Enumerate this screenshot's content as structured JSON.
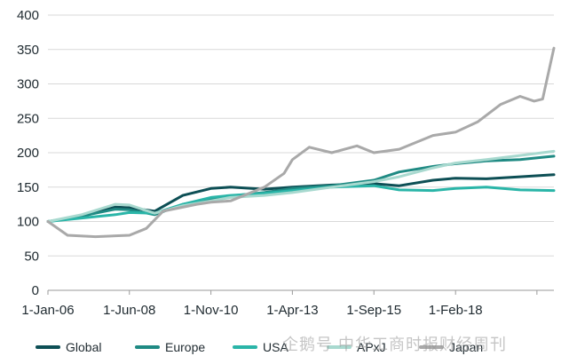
{
  "chart_data": {
    "type": "line",
    "title": "",
    "xlabel": "",
    "ylabel": "",
    "ylim": [
      0,
      400
    ],
    "y_ticks": [
      "0",
      "50",
      "100",
      "150",
      "200",
      "250",
      "300",
      "350",
      "400"
    ],
    "x_ticks": [
      "1-Jan-06",
      "1-Jun-08",
      "1-Nov-10",
      "1-Apr-13",
      "1-Sep-15",
      "1-Feb-18"
    ],
    "xlim": [
      "2006-01-01",
      "2021-01-01"
    ],
    "grid": "horizontal",
    "legend_position": "bottom",
    "series": [
      {
        "name": "Global",
        "color": "#0d4f55",
        "points": [
          [
            "2006-01",
            100
          ],
          [
            "2007-01",
            107
          ],
          [
            "2008-01",
            121
          ],
          [
            "2008-06",
            120
          ],
          [
            "2009-03",
            115
          ],
          [
            "2010-01",
            138
          ],
          [
            "2010-11",
            148
          ],
          [
            "2011-06",
            150
          ],
          [
            "2012-06",
            147
          ],
          [
            "2013-04",
            150
          ],
          [
            "2014-06",
            153
          ],
          [
            "2015-09",
            155
          ],
          [
            "2016-06",
            152
          ],
          [
            "2017-06",
            160
          ],
          [
            "2018-02",
            163
          ],
          [
            "2019-01",
            162
          ],
          [
            "2020-01",
            165
          ],
          [
            "2021-01",
            168
          ]
        ]
      },
      {
        "name": "Europe",
        "color": "#1f8a83",
        "points": [
          [
            "2006-01",
            100
          ],
          [
            "2007-01",
            108
          ],
          [
            "2008-01",
            118
          ],
          [
            "2008-06",
            117
          ],
          [
            "2009-03",
            110
          ],
          [
            "2010-01",
            125
          ],
          [
            "2010-11",
            132
          ],
          [
            "2011-06",
            137
          ],
          [
            "2012-06",
            142
          ],
          [
            "2013-04",
            148
          ],
          [
            "2014-06",
            152
          ],
          [
            "2015-09",
            160
          ],
          [
            "2016-06",
            172
          ],
          [
            "2017-06",
            180
          ],
          [
            "2018-02",
            184
          ],
          [
            "2019-01",
            188
          ],
          [
            "2020-01",
            190
          ],
          [
            "2021-01",
            195
          ]
        ]
      },
      {
        "name": "USA",
        "color": "#2ab5a8",
        "points": [
          [
            "2006-01",
            100
          ],
          [
            "2007-01",
            105
          ],
          [
            "2008-01",
            110
          ],
          [
            "2008-06",
            113
          ],
          [
            "2009-03",
            112
          ],
          [
            "2010-01",
            125
          ],
          [
            "2010-11",
            135
          ],
          [
            "2011-06",
            138
          ],
          [
            "2012-06",
            141
          ],
          [
            "2013-04",
            145
          ],
          [
            "2014-06",
            150
          ],
          [
            "2015-09",
            152
          ],
          [
            "2016-06",
            146
          ],
          [
            "2017-06",
            145
          ],
          [
            "2018-02",
            148
          ],
          [
            "2019-01",
            150
          ],
          [
            "2020-01",
            146
          ],
          [
            "2021-01",
            145
          ]
        ]
      },
      {
        "name": "APxJ",
        "color": "#a8d9cf",
        "points": [
          [
            "2006-01",
            100
          ],
          [
            "2007-01",
            110
          ],
          [
            "2008-01",
            125
          ],
          [
            "2008-06",
            124
          ],
          [
            "2009-03",
            112
          ],
          [
            "2010-01",
            123
          ],
          [
            "2010-11",
            130
          ],
          [
            "2011-06",
            135
          ],
          [
            "2012-06",
            138
          ],
          [
            "2013-04",
            142
          ],
          [
            "2014-06",
            150
          ],
          [
            "2015-09",
            158
          ],
          [
            "2016-06",
            165
          ],
          [
            "2017-06",
            178
          ],
          [
            "2018-02",
            185
          ],
          [
            "2019-01",
            190
          ],
          [
            "2020-01",
            196
          ],
          [
            "2021-01",
            202
          ]
        ]
      },
      {
        "name": "Japan",
        "color": "#a9a9a9",
        "points": [
          [
            "2006-01",
            100
          ],
          [
            "2006-08",
            80
          ],
          [
            "2007-06",
            78
          ],
          [
            "2008-06",
            80
          ],
          [
            "2008-12",
            90
          ],
          [
            "2009-06",
            115
          ],
          [
            "2010-06",
            125
          ],
          [
            "2010-11",
            128
          ],
          [
            "2011-06",
            130
          ],
          [
            "2012-06",
            150
          ],
          [
            "2013-01",
            170
          ],
          [
            "2013-04",
            190
          ],
          [
            "2013-10",
            208
          ],
          [
            "2014-06",
            200
          ],
          [
            "2015-03",
            210
          ],
          [
            "2015-09",
            200
          ],
          [
            "2016-06",
            205
          ],
          [
            "2017-06",
            225
          ],
          [
            "2018-02",
            230
          ],
          [
            "2018-10",
            245
          ],
          [
            "2019-06",
            270
          ],
          [
            "2020-01",
            282
          ],
          [
            "2020-06",
            275
          ],
          [
            "2020-09",
            278
          ],
          [
            "2021-01",
            352
          ]
        ]
      }
    ]
  },
  "watermark": "企鹅号 中华工商时报财经周刊"
}
